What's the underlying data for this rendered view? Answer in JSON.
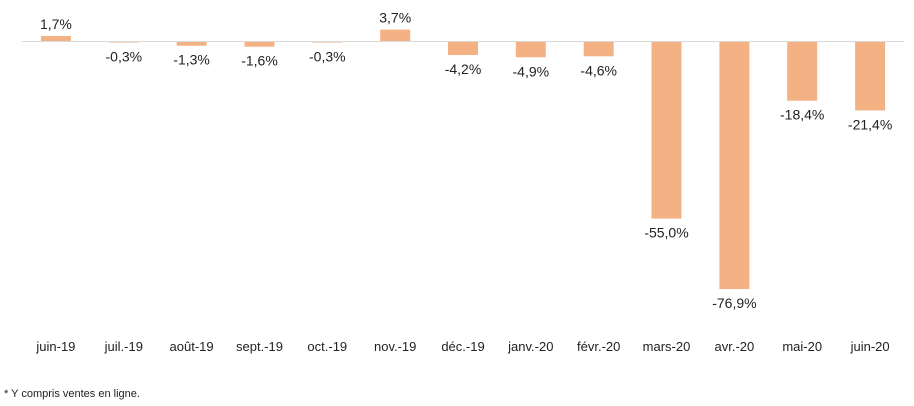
{
  "chart_data": {
    "type": "bar",
    "categories": [
      "juin-19",
      "juil.-19",
      "août-19",
      "sept.-19",
      "oct.-19",
      "nov.-19",
      "déc.-19",
      "janv.-20",
      "févr.-20",
      "mars-20",
      "avr.-20",
      "mai-20",
      "juin-20"
    ],
    "series": [
      {
        "values": [
          1.7,
          -0.3,
          -1.3,
          -1.6,
          -0.3,
          3.7,
          -4.2,
          -4.9,
          -4.6,
          -55.0,
          -76.9,
          -18.4,
          -21.4
        ],
        "data_labels": [
          "1,7%",
          "-0,3%",
          "-1,3%",
          "-1,6%",
          "-0,3%",
          "3,7%",
          "-4,2%",
          "-4,9%",
          "-4,6%",
          "-55,0%",
          "-76,9%",
          "-18,4%",
          "-21,4%"
        ],
        "color": "#f4b183"
      }
    ],
    "ylim": [
      -80,
      5
    ],
    "grid": false,
    "legend": "none",
    "axis_color": "#d9d9d9"
  },
  "footnote": "* Y compris ventes en ligne."
}
